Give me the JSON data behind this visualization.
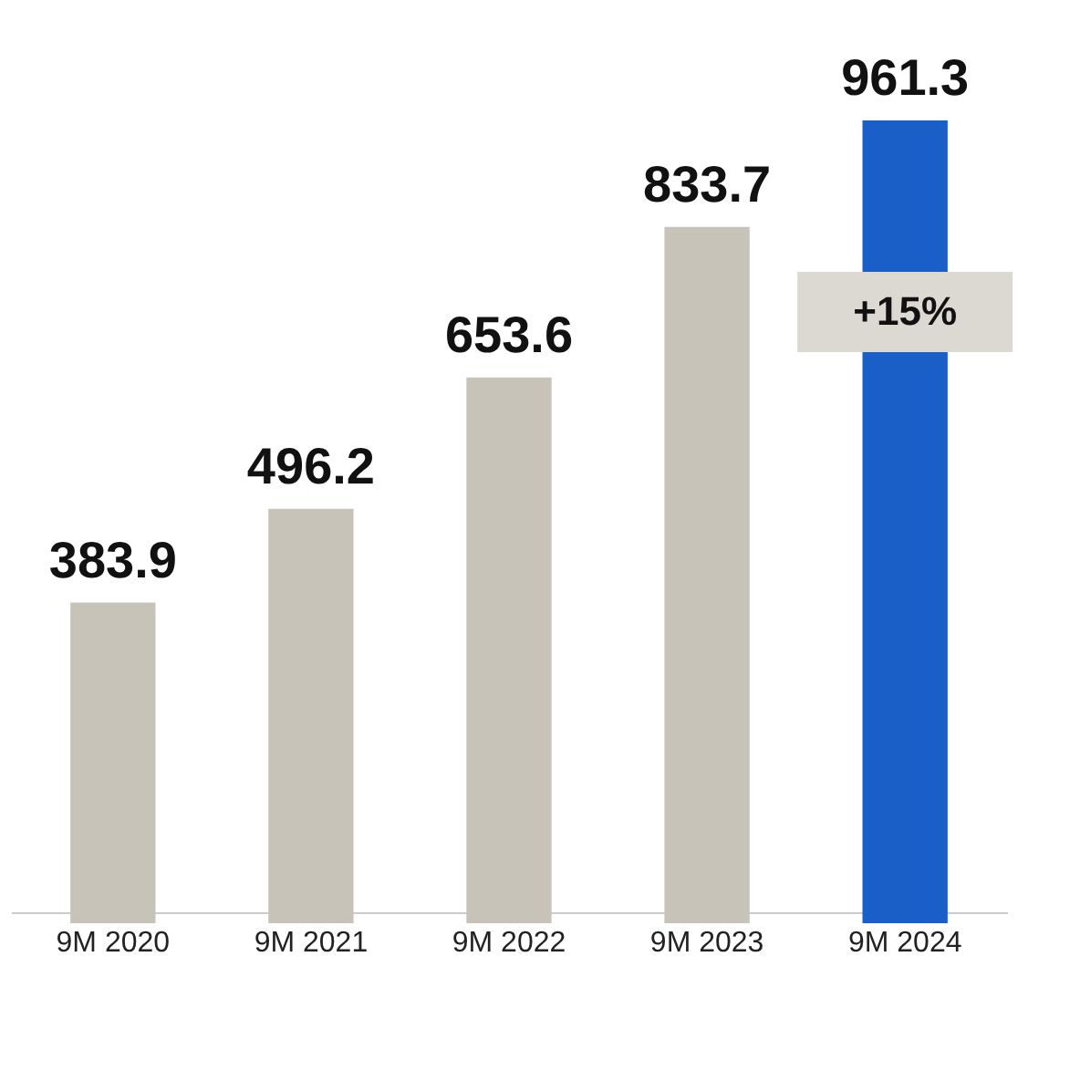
{
  "chart_data": {
    "type": "bar",
    "categories": [
      "9M 2020",
      "9M 2021",
      "9M 2022",
      "9M 2023",
      "9M 2024"
    ],
    "values": [
      383.9,
      496.2,
      653.6,
      833.7,
      961.3
    ],
    "colors": [
      "#c8c3b9",
      "#c8c3b9",
      "#c8c3b9",
      "#c8c3b9",
      "#1a5fc8"
    ],
    "data_labels": true,
    "tick_labels": "x",
    "grid": false,
    "annotations": [
      "+15%"
    ]
  }
}
